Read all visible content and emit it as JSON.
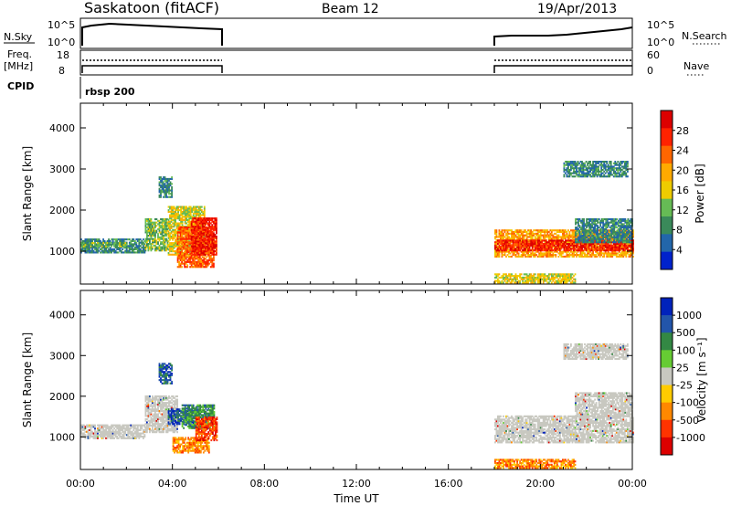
{
  "header": {
    "title": "Saskatoon (fitACF)",
    "beam": "Beam 12",
    "date": "19/Apr/2013"
  },
  "noise_panel": {
    "left_label": "N.Sky",
    "left_ticks": [
      "10^5",
      "10^0"
    ],
    "right_label": "N.Search",
    "right_ticks": [
      "10^5",
      "10^0"
    ]
  },
  "freq_panel": {
    "left_label_1": "Freq.",
    "left_label_2": "[MHz]",
    "left_ticks": [
      "18",
      "8"
    ],
    "right_label": "Nave",
    "right_ticks": [
      "60",
      "0"
    ]
  },
  "cpid_panel": {
    "label": "CPID",
    "text": "rbsp 200"
  },
  "colors": {
    "power_scale": [
      "#0022cc",
      "#2266aa",
      "#3a8a5a",
      "#66bb55",
      "#eecc00",
      "#ffaa00",
      "#ff6600",
      "#ff2200",
      "#dd0000"
    ],
    "velocity_scale": [
      "#dd0000",
      "#ff3300",
      "#ff8800",
      "#ffcc00",
      "#c8c8c0",
      "#66cc33",
      "#338844",
      "#2255aa",
      "#0022bb"
    ],
    "ground_scatter": "#c8c8c0"
  },
  "chart_data": [
    {
      "type": "heatmap",
      "panel": "power",
      "ylabel": "Slant Range [km]",
      "ylim": [
        200,
        4600
      ],
      "y_ticks": [
        "4000",
        "3000",
        "2000",
        "1000"
      ],
      "xlim": [
        0,
        24
      ],
      "colorbar_label": "Power [dB]",
      "colorbar_ticks": [
        "28",
        "24",
        "20",
        "16",
        "12",
        "8",
        "4"
      ],
      "colorbar_range": [
        0,
        32
      ],
      "data_gap_hours": [
        6,
        18
      ],
      "regions": [
        {
          "t": [
            0,
            2.8
          ],
          "range": [
            950,
            1300
          ],
          "level": 8
        },
        {
          "t": [
            0,
            2.0
          ],
          "range": [
            1100,
            1200
          ],
          "level": 12
        },
        {
          "t": [
            2.8,
            3.8
          ],
          "range": [
            1000,
            1800
          ],
          "level": 12
        },
        {
          "t": [
            3.8,
            5.4
          ],
          "range": [
            900,
            2100
          ],
          "level": 16
        },
        {
          "t": [
            4.2,
            5.8
          ],
          "range": [
            600,
            1600
          ],
          "level": 24
        },
        {
          "t": [
            4.8,
            5.9
          ],
          "range": [
            900,
            1800
          ],
          "level": 28
        },
        {
          "t": [
            3.4,
            4.0
          ],
          "range": [
            2300,
            2800
          ],
          "level": 8
        },
        {
          "t": [
            18.0,
            24
          ],
          "range": [
            850,
            1500
          ],
          "level": 20
        },
        {
          "t": [
            18.0,
            24
          ],
          "range": [
            1000,
            1250
          ],
          "level": 28
        },
        {
          "t": [
            21.5,
            24
          ],
          "range": [
            1200,
            1800
          ],
          "level": 8
        },
        {
          "t": [
            21.0,
            23.8
          ],
          "range": [
            2800,
            3200
          ],
          "level": 8
        },
        {
          "t": [
            18.0,
            21.5
          ],
          "range": [
            220,
            450
          ],
          "level": 16
        }
      ]
    },
    {
      "type": "heatmap",
      "panel": "velocity",
      "ylabel": "Slant Range [km]",
      "ylim": [
        200,
        4600
      ],
      "y_ticks": [
        "4000",
        "3000",
        "2000",
        "1000"
      ],
      "xlim": [
        0,
        24
      ],
      "colorbar_label": "Velocity [m s⁻¹]",
      "colorbar_ticks": [
        "1000",
        "500",
        "100",
        "25",
        "-25",
        "-100",
        "-500",
        "-1000"
      ],
      "x_ticks": [
        "00:00",
        "04:00",
        "08:00",
        "12:00",
        "16:00",
        "20:00",
        "00:00"
      ],
      "xlabel": "Time UT",
      "data_gap_hours": [
        6,
        18
      ],
      "regions": [
        {
          "t": [
            0,
            2.8
          ],
          "range": [
            950,
            1300
          ],
          "level": 0
        },
        {
          "t": [
            2.8,
            4.2
          ],
          "range": [
            1100,
            2000
          ],
          "level": 0
        },
        {
          "t": [
            3.8,
            5.2
          ],
          "range": [
            1300,
            1700
          ],
          "level": 500
        },
        {
          "t": [
            4.4,
            5.8
          ],
          "range": [
            1200,
            1800
          ],
          "level": 100
        },
        {
          "t": [
            4.0,
            5.6
          ],
          "range": [
            600,
            1000
          ],
          "level": -100
        },
        {
          "t": [
            5.0,
            5.9
          ],
          "range": [
            900,
            1500
          ],
          "level": -500
        },
        {
          "t": [
            3.4,
            4.0
          ],
          "range": [
            2300,
            2800
          ],
          "level": 500
        },
        {
          "t": [
            18.0,
            24
          ],
          "range": [
            850,
            1500
          ],
          "level": 0
        },
        {
          "t": [
            21.5,
            24
          ],
          "range": [
            1500,
            2100
          ],
          "level": 0
        },
        {
          "t": [
            21.0,
            23.8
          ],
          "range": [
            2900,
            3300
          ],
          "level": 0
        },
        {
          "t": [
            18.0,
            21.5
          ],
          "range": [
            220,
            450
          ],
          "level": -100
        }
      ]
    }
  ]
}
